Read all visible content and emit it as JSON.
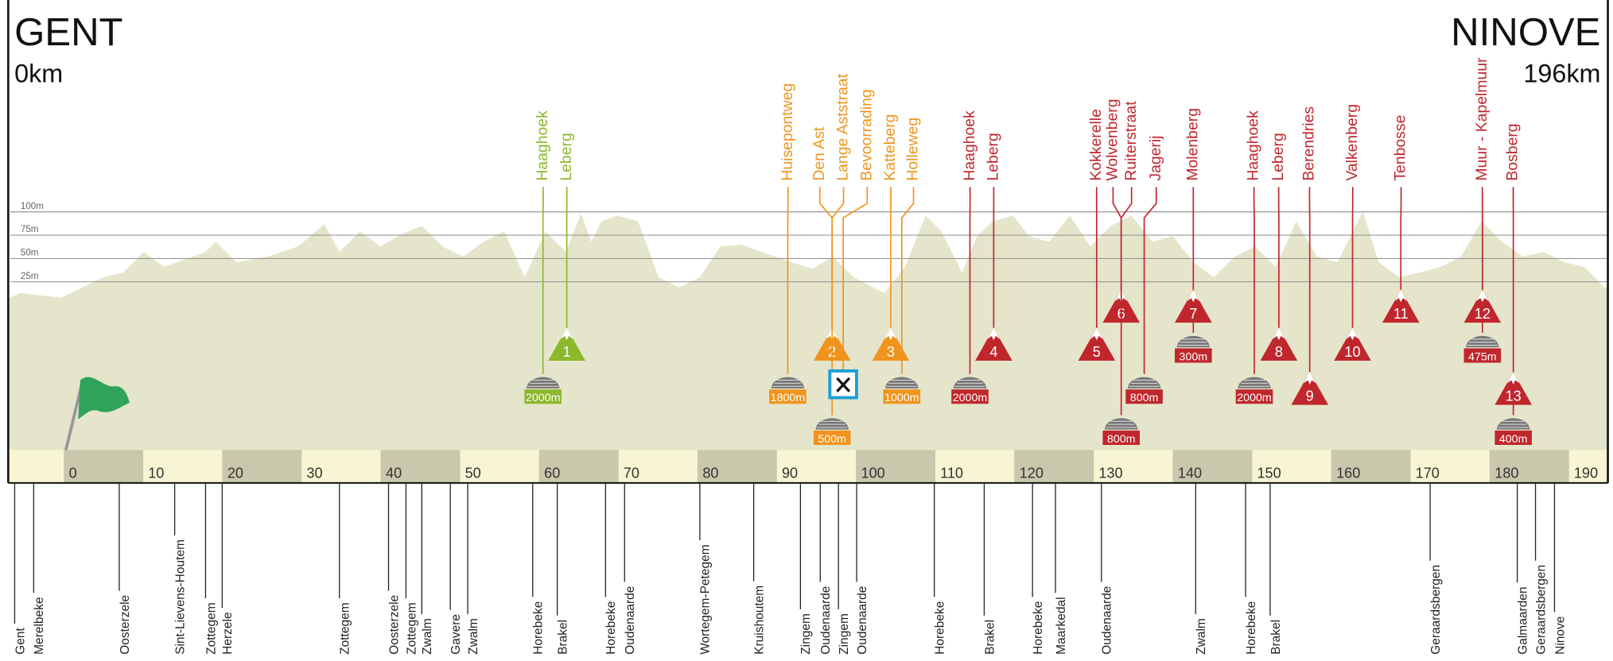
{
  "header": {
    "start": "GENT",
    "start_km": "0km",
    "finish": "NINOVE",
    "finish_km": "196km"
  },
  "profile": {
    "km": [
      -6.8,
      -5.5,
      -0.3,
      5.0,
      7.5,
      10.1,
      12.7,
      17.9,
      19.2,
      21.8,
      25.7,
      29.6,
      32.9,
      34.8,
      37.4,
      40.0,
      42.6,
      45.2,
      47.8,
      50.4,
      53.0,
      55.6,
      58.2,
      60.8,
      63.4,
      65.3,
      66.6,
      67.9,
      69.9,
      72.5,
      75.1,
      77.7,
      80.3,
      82.9,
      85.5,
      88.1,
      91.9,
      94.5,
      97.1,
      99.7,
      103.6,
      106.2,
      108.8,
      110.8,
      113.4,
      115.3,
      117.3,
      119.9,
      121.8,
      124.4,
      127.0,
      129.6,
      132.2,
      134.8,
      137.4,
      140.0,
      142.6,
      145.2,
      147.8,
      150.4,
      153.0,
      155.6,
      158.2,
      160.8,
      164.0,
      166.0,
      168.6,
      171.2,
      173.8,
      176.4,
      179.0,
      181.6,
      184.2,
      186.8,
      189.4,
      192.0,
      194.5
    ],
    "altitude": [
      8,
      13,
      8,
      30,
      35,
      57,
      41,
      57,
      68,
      46,
      52,
      63,
      87,
      57,
      79,
      63,
      76,
      85,
      63,
      52,
      68,
      79,
      30,
      79,
      57,
      98,
      68,
      90,
      96,
      90,
      30,
      19,
      30,
      63,
      65,
      57,
      46,
      39,
      52,
      30,
      13,
      41,
      96,
      79,
      35,
      74,
      90,
      96,
      74,
      68,
      96,
      63,
      85,
      96,
      68,
      74,
      46,
      30,
      52,
      63,
      41,
      90,
      52,
      46,
      101,
      46,
      30,
      35,
      41,
      52,
      90,
      68,
      52,
      57,
      46,
      41,
      19
    ],
    "altitude_ticks": [
      {
        "value": 100,
        "label": "100m"
      },
      {
        "value": 75,
        "label": "75m"
      },
      {
        "value": 50,
        "label": "50m"
      },
      {
        "value": 25,
        "label": "25m"
      }
    ],
    "km_ticks": [
      0,
      10,
      20,
      30,
      40,
      50,
      60,
      70,
      80,
      90,
      100,
      110,
      120,
      130,
      140,
      150,
      160,
      170,
      180,
      190
    ]
  },
  "markers": [
    {
      "name": "Haaghoek",
      "km": 60.5,
      "cobbles": "2000m",
      "color": "#8cb82b"
    },
    {
      "name": "Leberg",
      "km": 63.5,
      "climb": 1,
      "color": "#8cb82b"
    },
    {
      "name": "Huisepontweg",
      "km": 91.4,
      "cobbles": "1800m",
      "color": "#f0941e"
    },
    {
      "name": "Den Ast",
      "km": 97.0,
      "climb": 2,
      "color": "#f0941e"
    },
    {
      "name": "Lange Aststraat",
      "km": 97.0,
      "cobbles": "500m",
      "color": "#f0941e"
    },
    {
      "name": "Bevoorrading",
      "km": 98.4,
      "feed_zone": true,
      "color": "#f0941e"
    },
    {
      "name": "Katteberg",
      "km": 104.4,
      "climb": 3,
      "color": "#f0941e"
    },
    {
      "name": "Holleweg",
      "km": 105.8,
      "cobbles": "1000m",
      "color": "#f0941e"
    },
    {
      "name": "Haaghoek",
      "km": 114.4,
      "cobbles": "2000m",
      "color": "#c0272d"
    },
    {
      "name": "Leberg",
      "km": 117.4,
      "climb": 4,
      "color": "#c0272d"
    },
    {
      "name": "Kokkerelle",
      "km": 130.4,
      "climb": 5,
      "color": "#c0272d"
    },
    {
      "name": "Wolvenberg",
      "km": 133.5,
      "climb": 6,
      "color": "#c0272d"
    },
    {
      "name": "Ruiterstraat",
      "km": 133.5,
      "cobbles": "800m",
      "color": "#c0272d"
    },
    {
      "name": "Jagerij",
      "km": 136.4,
      "cobbles": "800m",
      "color": "#c0272d"
    },
    {
      "name": "Molenberg",
      "km": 142.6,
      "climb": 7,
      "cobbles": "300m",
      "color": "#c0272d"
    },
    {
      "name": "Haaghoek",
      "km": 150.3,
      "cobbles": "2000m",
      "color": "#c0272d"
    },
    {
      "name": "Leberg",
      "km": 153.4,
      "climb": 8,
      "color": "#c0272d"
    },
    {
      "name": "Berendries",
      "km": 157.3,
      "climb": 9,
      "color": "#c0272d"
    },
    {
      "name": "Valkenberg",
      "km": 162.7,
      "climb": 10,
      "color": "#c0272d"
    },
    {
      "name": "Tenbosse",
      "km": 168.8,
      "climb": 11,
      "color": "#c0272d"
    },
    {
      "name": "Muur - Kapelmuur",
      "km": 179.1,
      "climb": 12,
      "cobbles": "475m",
      "color": "#c0272d"
    },
    {
      "name": "Bosberg",
      "km": 183.0,
      "climb": 13,
      "cobbles": "400m",
      "color": "#c0272d"
    }
  ],
  "towns": [
    {
      "name": "Gent",
      "km": -6.2
    },
    {
      "name": "Merelbeke",
      "km": -3.8
    },
    {
      "name": "Oosterzele",
      "km": 7.0
    },
    {
      "name": "Sint-Lievens-Houtem",
      "km": 14.0
    },
    {
      "name": "Zottegem",
      "km": 17.9
    },
    {
      "name": "Herzele",
      "km": 20.0
    },
    {
      "name": "Zottegem",
      "km": 34.8
    },
    {
      "name": "Oosterzele",
      "km": 41.0
    },
    {
      "name": "Zottegem",
      "km": 43.2
    },
    {
      "name": "Zwalm",
      "km": 45.2
    },
    {
      "name": "Gavere",
      "km": 48.8
    },
    {
      "name": "Zwalm",
      "km": 51.0
    },
    {
      "name": "Horebeke",
      "km": 59.2
    },
    {
      "name": "Brakel",
      "km": 62.3
    },
    {
      "name": "Horebeke",
      "km": 68.4
    },
    {
      "name": "Oudenaarde",
      "km": 70.8
    },
    {
      "name": "Wortegem-Petegem",
      "km": 80.3
    },
    {
      "name": "Kruishoutem",
      "km": 87.1
    },
    {
      "name": "Zingem",
      "km": 93.0
    },
    {
      "name": "Oudenaarde",
      "km": 95.5
    },
    {
      "name": "Zingem",
      "km": 97.8
    },
    {
      "name": "Oudenaarde",
      "km": 100.1
    },
    {
      "name": "Horebeke",
      "km": 109.9
    },
    {
      "name": "Brakel",
      "km": 116.2
    },
    {
      "name": "Horebeke",
      "km": 122.3
    },
    {
      "name": "Maarkedal",
      "km": 125.2
    },
    {
      "name": "Oudenaarde",
      "km": 131.0
    },
    {
      "name": "Zwalm",
      "km": 142.9
    },
    {
      "name": "Horebeke",
      "km": 149.2
    },
    {
      "name": "Brakel",
      "km": 152.3
    },
    {
      "name": "Geraardsbergen",
      "km": 172.5
    },
    {
      "name": "Galmaarden",
      "km": 183.5
    },
    {
      "name": "Geraardsbergen",
      "km": 185.8
    },
    {
      "name": "Ninove",
      "km": 188.2
    }
  ]
}
